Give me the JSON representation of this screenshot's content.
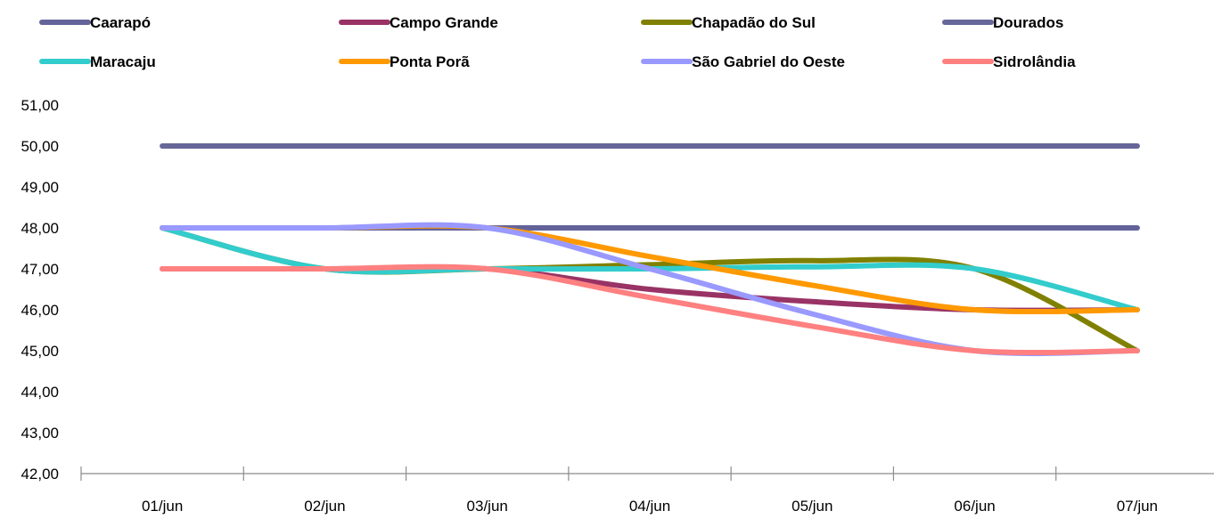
{
  "chart_data": {
    "type": "line",
    "title": "",
    "xlabel": "",
    "ylabel": "",
    "categories": [
      "01/jun",
      "02/jun",
      "03/jun",
      "04/jun",
      "05/jun",
      "06/jun",
      "07/jun"
    ],
    "ylim": [
      42,
      51
    ],
    "yticks": [
      "42,00",
      "43,00",
      "44,00",
      "45,00",
      "46,00",
      "47,00",
      "48,00",
      "49,00",
      "50,00",
      "51,00"
    ],
    "legend_position": "top",
    "grid": false,
    "smooth": true,
    "series": [
      {
        "name": "Caarapó",
        "color": "#63639a",
        "values": [
          48,
          48,
          48,
          48,
          48,
          48,
          48
        ]
      },
      {
        "name": "Campo Grande",
        "color": "#993366",
        "values": [
          47,
          47,
          47,
          46.5,
          46.2,
          46,
          46
        ]
      },
      {
        "name": "Chapadão do Sul",
        "color": "#808000",
        "values": [
          48,
          47,
          47,
          47.1,
          47.2,
          47,
          45
        ]
      },
      {
        "name": "Dourados",
        "color": "#666699",
        "values": [
          50,
          50,
          50,
          50,
          50,
          50,
          50
        ]
      },
      {
        "name": "Maracaju",
        "color": "#33cccc",
        "values": [
          48,
          47,
          47,
          47,
          47.05,
          47,
          46
        ]
      },
      {
        "name": "Ponta Porã",
        "color": "#ff9900",
        "values": [
          48,
          48,
          48,
          47.3,
          46.6,
          46,
          46
        ]
      },
      {
        "name": "São Gabriel do Oeste",
        "color": "#9999ff",
        "values": [
          48,
          48,
          48,
          47,
          45.9,
          45,
          45
        ]
      },
      {
        "name": "Sidrolândia",
        "color": "#ff8080",
        "values": [
          47,
          47,
          47,
          46.3,
          45.6,
          45,
          45
        ]
      }
    ]
  }
}
